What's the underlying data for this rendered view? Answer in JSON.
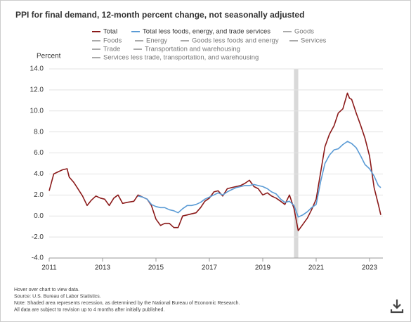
{
  "chart_data": {
    "type": "line",
    "title": "PPI for final demand, 12-month percent change, not seasonally adjusted",
    "y_label": "Percent",
    "xlim": [
      2011,
      2023.5
    ],
    "xticks": [
      2011,
      2013,
      2015,
      2017,
      2019,
      2021,
      2023
    ],
    "ylim": [
      -4,
      14
    ],
    "yticks": [
      {
        "value": -4,
        "label": "-4.0"
      },
      {
        "value": -2,
        "label": "-2.0"
      },
      {
        "value": 0,
        "label": "0.0"
      },
      {
        "value": 2,
        "label": "2.0"
      },
      {
        "value": 4,
        "label": "4.0"
      },
      {
        "value": 6,
        "label": "6.0"
      },
      {
        "value": 8,
        "label": "8.0"
      },
      {
        "value": 10,
        "label": "10.0"
      },
      {
        "value": 12,
        "label": "12.0"
      },
      {
        "value": 14,
        "label": "14.0"
      }
    ],
    "grid": true,
    "recession": [
      2020.17,
      2020.33
    ],
    "recession_color": "#d9d9d9",
    "series": [
      {
        "name": "Total",
        "color": "#8b1a1a",
        "x": [
          2011.0,
          2011.17,
          2011.33,
          2011.5,
          2011.67,
          2011.75,
          2011.92,
          2012.0,
          2012.25,
          2012.42,
          2012.58,
          2012.75,
          2012.92,
          2013.08,
          2013.25,
          2013.42,
          2013.58,
          2013.75,
          2013.92,
          2014.17,
          2014.33,
          2014.5,
          2014.67,
          2014.83,
          2015.0,
          2015.17,
          2015.33,
          2015.5,
          2015.67,
          2015.83,
          2016.0,
          2016.17,
          2016.33,
          2016.5,
          2016.67,
          2016.83,
          2017.0,
          2017.17,
          2017.33,
          2017.5,
          2017.67,
          2017.83,
          2018.0,
          2018.17,
          2018.33,
          2018.5,
          2018.67,
          2018.83,
          2019.0,
          2019.17,
          2019.33,
          2019.5,
          2019.67,
          2019.83,
          2020.0,
          2020.17,
          2020.33,
          2020.5,
          2020.67,
          2020.83,
          2021.0,
          2021.17,
          2021.33,
          2021.5,
          2021.67,
          2021.83,
          2022.0,
          2022.17,
          2022.25,
          2022.33,
          2022.5,
          2022.67,
          2022.83,
          2023.0,
          2023.17,
          2023.33,
          2023.42
        ],
        "values": [
          2.4,
          4.0,
          4.2,
          4.4,
          4.5,
          3.7,
          3.2,
          2.9,
          1.9,
          1.0,
          1.5,
          1.9,
          1.7,
          1.6,
          1.0,
          1.7,
          2.0,
          1.2,
          1.3,
          1.4,
          2.0,
          1.8,
          1.6,
          1.0,
          -0.3,
          -0.9,
          -0.7,
          -0.7,
          -1.1,
          -1.1,
          0.0,
          0.1,
          0.2,
          0.3,
          0.8,
          1.4,
          1.7,
          2.3,
          2.4,
          1.9,
          2.6,
          2.7,
          2.8,
          2.9,
          3.1,
          3.4,
          2.8,
          2.6,
          2.0,
          2.2,
          1.9,
          1.7,
          1.4,
          1.1,
          2.0,
          0.7,
          -1.4,
          -0.8,
          -0.2,
          0.6,
          1.6,
          4.2,
          6.6,
          7.8,
          8.6,
          9.8,
          10.2,
          11.7,
          11.2,
          11.1,
          9.8,
          8.6,
          7.4,
          5.7,
          2.7,
          1.1,
          0.1
        ]
      },
      {
        "name": "Total less foods, energy, and trade services",
        "color": "#5b9bd5",
        "x": [
          2014.33,
          2014.5,
          2014.67,
          2014.83,
          2015.0,
          2015.17,
          2015.33,
          2015.5,
          2015.67,
          2015.83,
          2016.0,
          2016.17,
          2016.33,
          2016.5,
          2016.67,
          2016.83,
          2017.0,
          2017.17,
          2017.33,
          2017.5,
          2017.67,
          2017.83,
          2018.0,
          2018.17,
          2018.33,
          2018.5,
          2018.67,
          2018.83,
          2019.0,
          2019.17,
          2019.33,
          2019.5,
          2019.67,
          2019.83,
          2020.0,
          2020.17,
          2020.33,
          2020.5,
          2020.67,
          2020.83,
          2021.0,
          2021.17,
          2021.33,
          2021.5,
          2021.67,
          2021.83,
          2022.0,
          2022.17,
          2022.33,
          2022.5,
          2022.67,
          2022.83,
          2023.0,
          2023.17,
          2023.33,
          2023.42
        ],
        "values": [
          1.9,
          1.8,
          1.6,
          1.1,
          0.9,
          0.8,
          0.8,
          0.6,
          0.5,
          0.3,
          0.7,
          1.0,
          1.0,
          1.1,
          1.3,
          1.6,
          1.8,
          2.0,
          2.2,
          2.0,
          2.3,
          2.5,
          2.7,
          2.8,
          2.9,
          2.9,
          3.0,
          2.9,
          2.8,
          2.6,
          2.3,
          2.1,
          1.6,
          1.3,
          1.4,
          1.0,
          -0.1,
          0.1,
          0.4,
          0.8,
          1.1,
          3.3,
          5.0,
          5.8,
          6.3,
          6.4,
          6.8,
          7.1,
          6.9,
          6.5,
          5.7,
          4.9,
          4.5,
          3.8,
          2.9,
          2.7
        ]
      }
    ],
    "inactive_series": [
      {
        "name": "Goods",
        "color": "#aaaaaa"
      },
      {
        "name": "Foods",
        "color": "#aaaaaa"
      },
      {
        "name": "Energy",
        "color": "#aaaaaa"
      },
      {
        "name": "Goods less foods and energy",
        "color": "#aaaaaa"
      },
      {
        "name": "Services",
        "color": "#aaaaaa"
      },
      {
        "name": "Trade",
        "color": "#aaaaaa"
      },
      {
        "name": "Transportation and warehousing",
        "color": "#aaaaaa"
      },
      {
        "name": "Services less trade, transportation, and warehousing",
        "color": "#aaaaaa"
      }
    ],
    "notes": [
      "Hover over chart to view data.",
      "Source: U.S. Bureau of Labor Statistics.",
      "Note: Shaded area represents recession, as determined by the National Bureau of Economic Research.",
      "All data are subject to revision up to 4 months after initially published."
    ]
  }
}
